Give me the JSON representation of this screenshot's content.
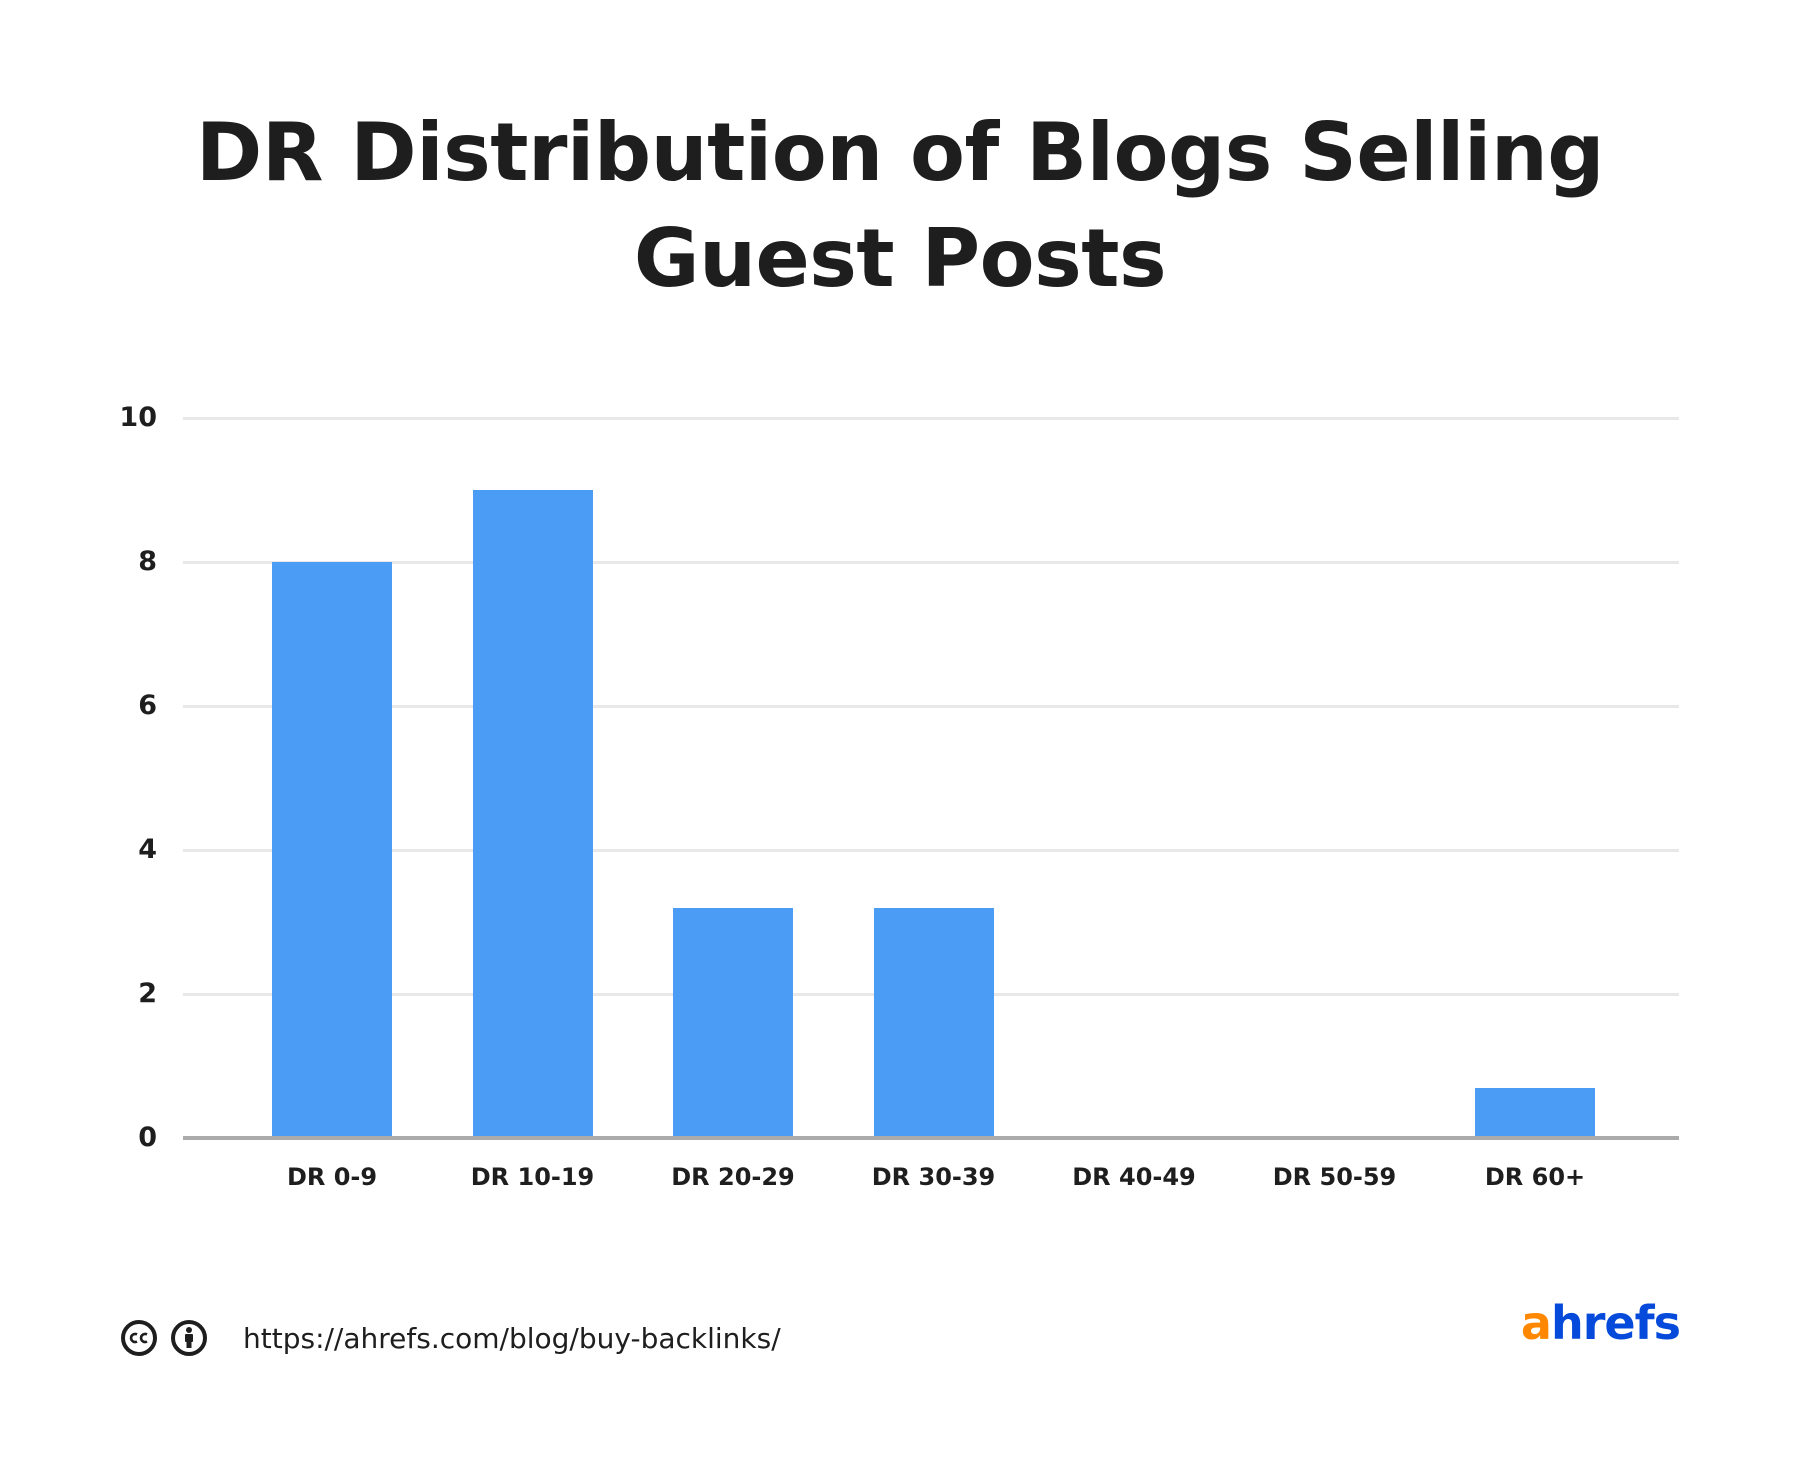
{
  "title": {
    "line1": "DR Distribution of Blogs Selling",
    "line2": "Guest Posts"
  },
  "colors": {
    "bar": "#4b9cf5",
    "gridline": "#e8e8e8",
    "axis": "#ababab",
    "text": "#1e1e1e",
    "logo_a": "#ff8800",
    "logo_rest": "#054ada"
  },
  "chart_data": {
    "type": "bar",
    "title": "DR Distribution of Blogs Selling Guest Posts",
    "xlabel": "",
    "ylabel": "",
    "categories": [
      "DR 0-9",
      "DR 10-19",
      "DR 20-29",
      "DR 30-39",
      "DR 40-49",
      "DR 50-59",
      "DR 60+"
    ],
    "values": [
      8,
      9,
      3.2,
      3.2,
      0,
      0,
      0.7
    ],
    "ylim": [
      0,
      10
    ],
    "yticks": [
      "0",
      "2",
      "4",
      "6",
      "8",
      "10"
    ],
    "grid": true,
    "legend": null
  },
  "footer": {
    "license_icons": [
      "creative-commons-icon",
      "attribution-icon"
    ],
    "url": "https://ahrefs.com/blog/buy-backlinks/",
    "logo": {
      "first": "a",
      "rest": "hrefs"
    }
  }
}
